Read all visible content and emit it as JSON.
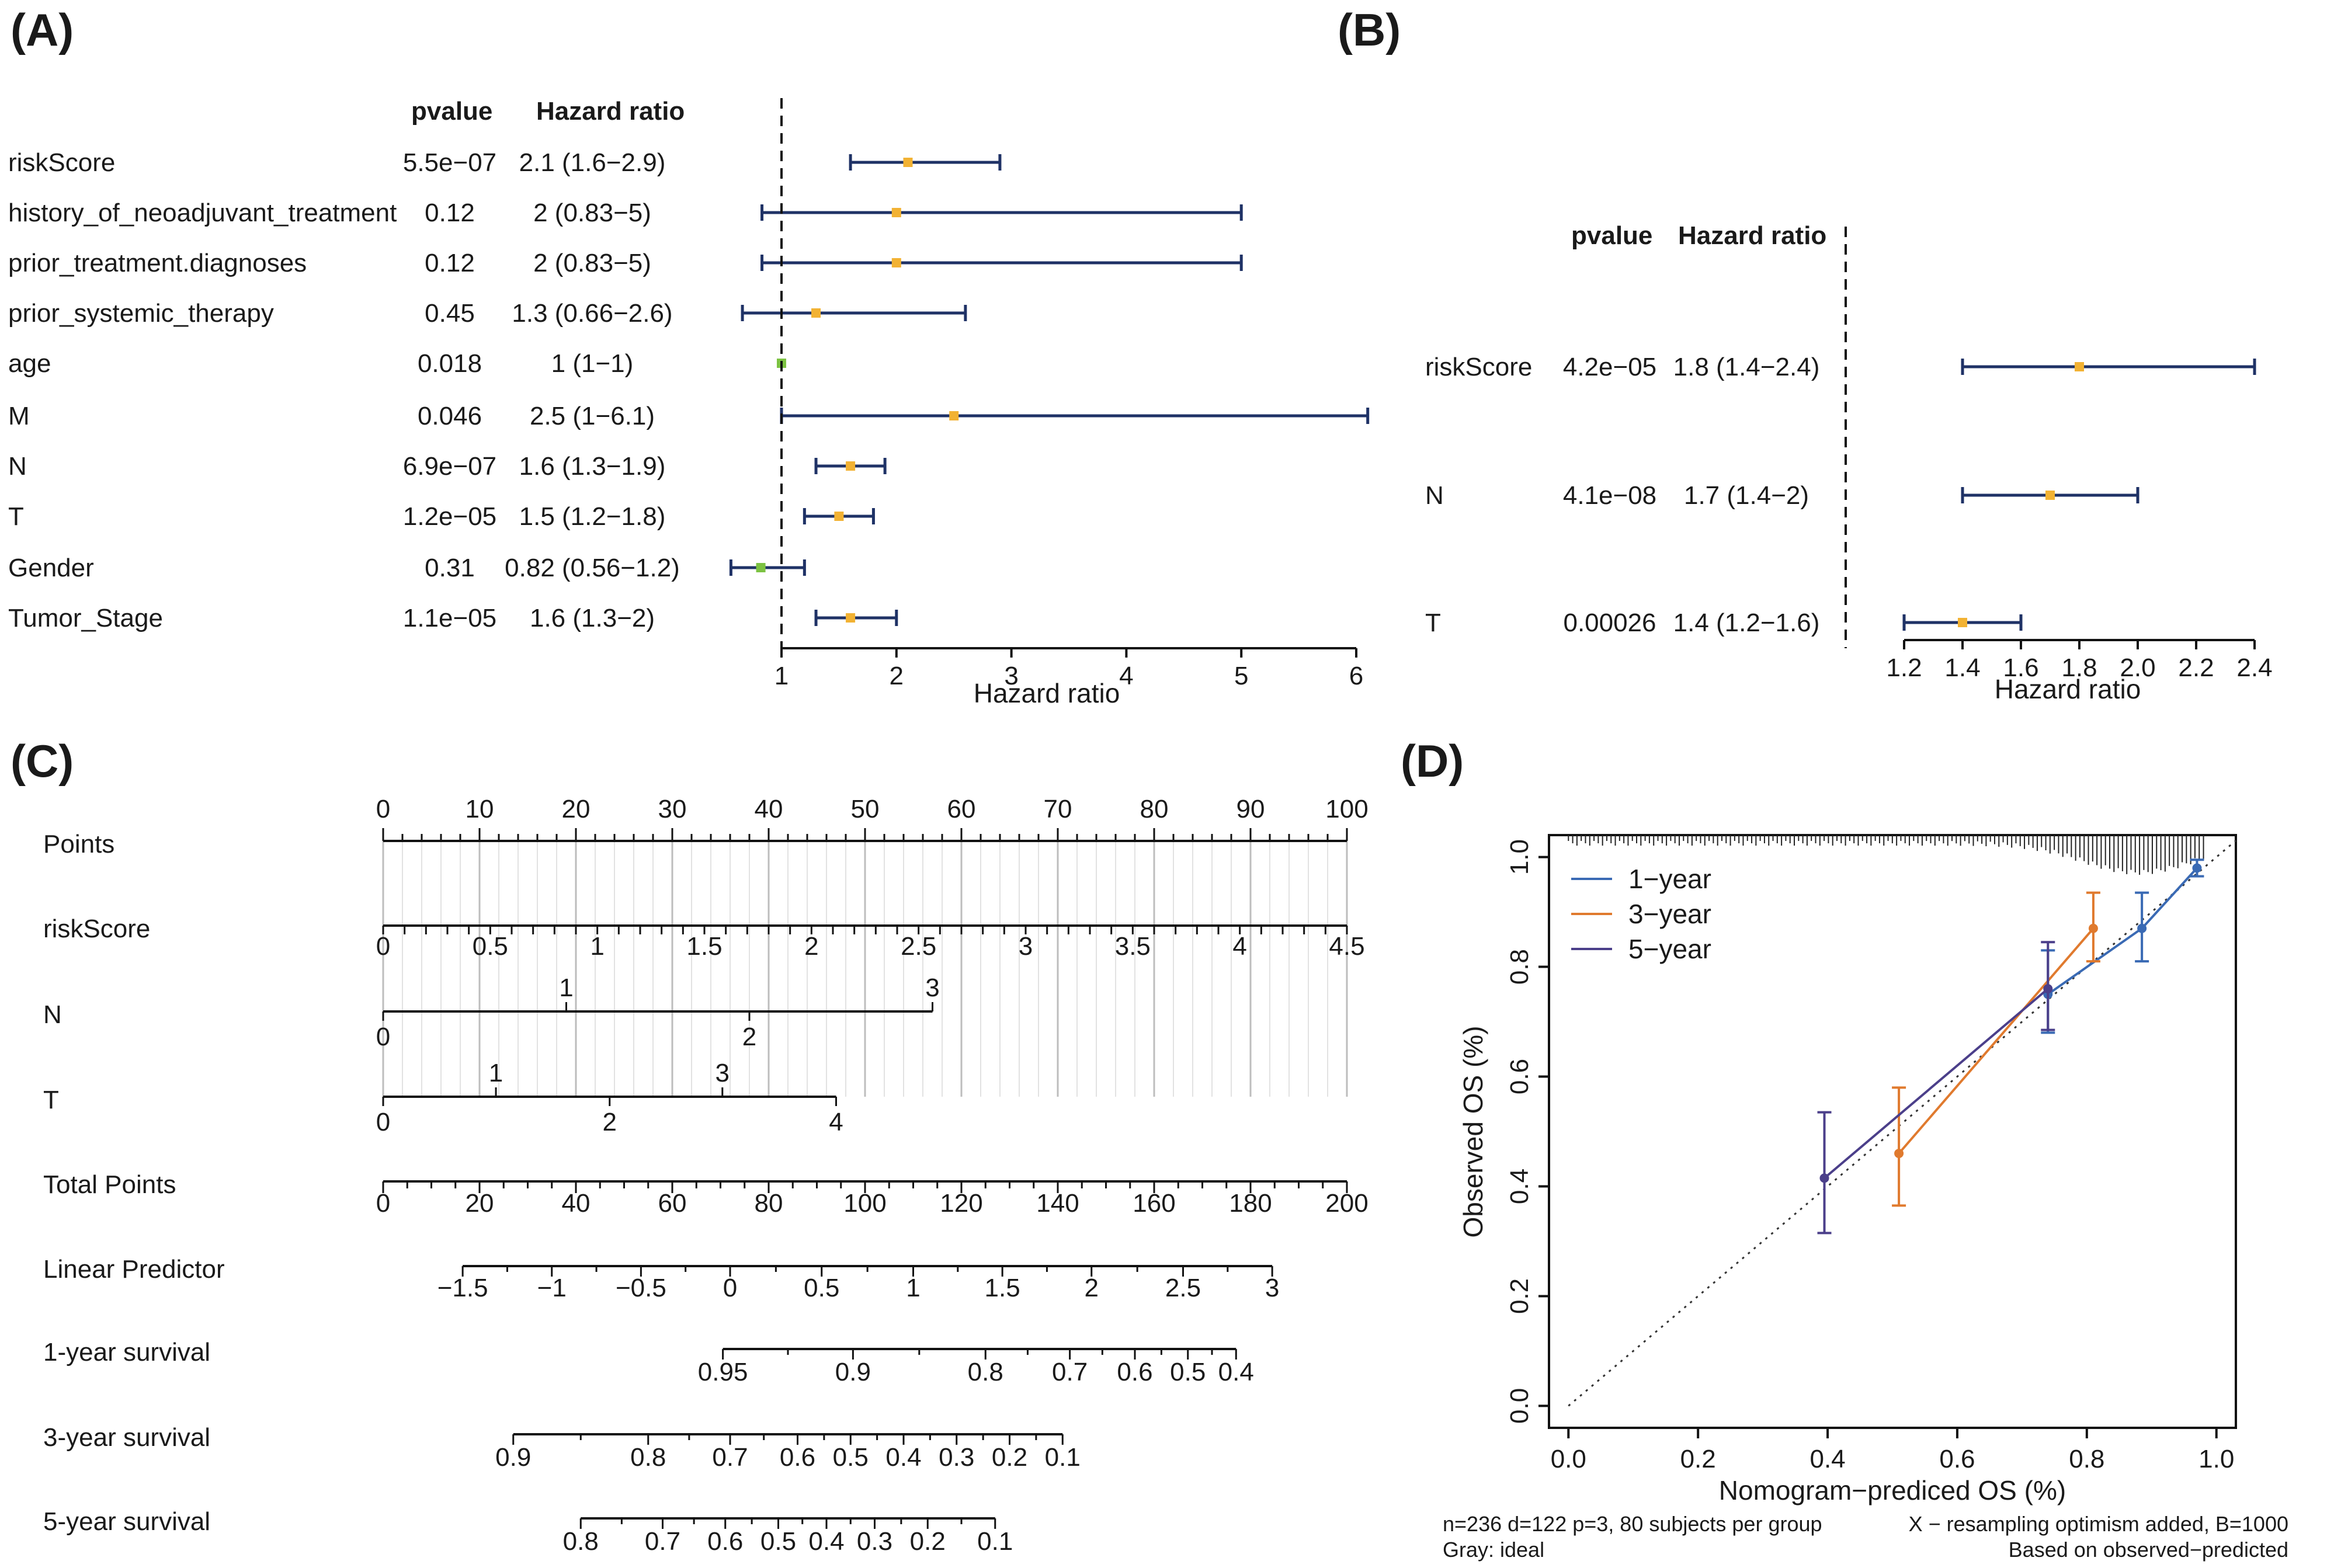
{
  "colors": {
    "ci": "#1f3266",
    "point": "#f2b233",
    "point_green": "#7cc242",
    "grid": "#c8c8c8",
    "y1": "#3a6ab4",
    "y3": "#e07a2e",
    "y5": "#4b3f8a",
    "ideal": "#333333"
  },
  "panels": {
    "A": "(A)",
    "B": "(B)",
    "C": "(C)",
    "D": "(D)"
  },
  "chart_data": [
    {
      "id": "A",
      "type": "forest",
      "col_headers": {
        "pvalue": "pvalue",
        "hr": "Hazard ratio"
      },
      "xlabel": "Hazard ratio",
      "xlim": [
        1,
        6
      ],
      "xticks": [
        1,
        2,
        3,
        4,
        5,
        6
      ],
      "ref_line": 1,
      "rows": [
        {
          "name": "riskScore",
          "pvalue": "5.5e−07",
          "hr_text": "2.1 (1.6−2.9)",
          "hr": 2.1,
          "lo": 1.6,
          "hi": 2.9,
          "color": "orange"
        },
        {
          "name": "history_of_neoadjuvant_treatment",
          "pvalue": "0.12",
          "hr_text": "2 (0.83−5)",
          "hr": 2.0,
          "lo": 0.83,
          "hi": 5.0,
          "color": "orange"
        },
        {
          "name": "prior_treatment.diagnoses",
          "pvalue": "0.12",
          "hr_text": "2 (0.83−5)",
          "hr": 2.0,
          "lo": 0.83,
          "hi": 5.0,
          "color": "orange"
        },
        {
          "name": "prior_systemic_therapy",
          "pvalue": "0.45",
          "hr_text": "1.3 (0.66−2.6)",
          "hr": 1.3,
          "lo": 0.66,
          "hi": 2.6,
          "color": "orange"
        },
        {
          "name": "age",
          "pvalue": "0.018",
          "hr_text": "1 (1−1)",
          "hr": 1.0,
          "lo": 1.0,
          "hi": 1.0,
          "color": "green"
        },
        {
          "name": "M",
          "pvalue": "0.046",
          "hr_text": "2.5 (1−6.1)",
          "hr": 2.5,
          "lo": 1.0,
          "hi": 6.1,
          "color": "orange"
        },
        {
          "name": "N",
          "pvalue": "6.9e−07",
          "hr_text": "1.6 (1.3−1.9)",
          "hr": 1.6,
          "lo": 1.3,
          "hi": 1.9,
          "color": "orange"
        },
        {
          "name": "T",
          "pvalue": "1.2e−05",
          "hr_text": "1.5 (1.2−1.8)",
          "hr": 1.5,
          "lo": 1.2,
          "hi": 1.8,
          "color": "orange"
        },
        {
          "name": "Gender",
          "pvalue": "0.31",
          "hr_text": "0.82 (0.56−1.2)",
          "hr": 0.82,
          "lo": 0.56,
          "hi": 1.2,
          "color": "green"
        },
        {
          "name": "Tumor_Stage",
          "pvalue": "1.1e−05",
          "hr_text": "1.6 (1.3−2)",
          "hr": 1.6,
          "lo": 1.3,
          "hi": 2.0,
          "color": "orange"
        }
      ]
    },
    {
      "id": "B",
      "type": "forest",
      "col_headers": {
        "pvalue": "pvalue",
        "hr": "Hazard ratio"
      },
      "xlabel": "Hazard ratio",
      "xlim": [
        1.2,
        2.4
      ],
      "xticks": [
        "1.2",
        "1.4",
        "1.6",
        "1.8",
        "2.0",
        "2.2",
        "2.4"
      ],
      "rows": [
        {
          "name": "riskScore",
          "pvalue": "4.2e−05",
          "hr_text": "1.8 (1.4−2.4)",
          "hr": 1.8,
          "lo": 1.4,
          "hi": 2.4
        },
        {
          "name": "N",
          "pvalue": "4.1e−08",
          "hr_text": "1.7 (1.4−2)",
          "hr": 1.7,
          "lo": 1.4,
          "hi": 2.0
        },
        {
          "name": "T",
          "pvalue": "0.00026",
          "hr_text": "1.4 (1.2−1.6)",
          "hr": 1.4,
          "lo": 1.2,
          "hi": 1.6
        }
      ]
    },
    {
      "id": "C",
      "type": "nomogram",
      "scales": [
        {
          "label": "Points",
          "ticks": [
            "0",
            "10",
            "20",
            "30",
            "40",
            "50",
            "60",
            "70",
            "80",
            "90",
            "100"
          ],
          "values": [
            0,
            10,
            20,
            30,
            40,
            50,
            60,
            70,
            80,
            90,
            100
          ],
          "kind": "points"
        },
        {
          "label": "riskScore",
          "ticks": [
            "0",
            "0.5",
            "1",
            "1.5",
            "2",
            "2.5",
            "3",
            "3.5",
            "4",
            "4.5"
          ],
          "values": [
            0,
            0.5,
            1,
            1.5,
            2,
            2.5,
            3,
            3.5,
            4,
            4.5
          ],
          "min": 0,
          "max": 4.5,
          "pts_min": 0,
          "pts_max": 100
        },
        {
          "label": "N",
          "up": [
            "1",
            "3"
          ],
          "up_pts": [
            19,
            57
          ],
          "down": [
            "0",
            "2"
          ],
          "down_pts": [
            0,
            38
          ],
          "line_pts": [
            0,
            57
          ]
        },
        {
          "label": "T",
          "up": [
            "1",
            "3"
          ],
          "up_pts": [
            11.7,
            35.2
          ],
          "down": [
            "0",
            "2",
            "4"
          ],
          "down_pts": [
            0,
            23.5,
            47
          ],
          "line_pts": [
            0,
            47
          ]
        },
        {
          "label": "Total Points",
          "ticks": [
            "0",
            "20",
            "40",
            "60",
            "80",
            "100",
            "120",
            "140",
            "160",
            "180",
            "200"
          ],
          "min": 0,
          "max": 200
        },
        {
          "label": "Linear Predictor",
          "ticks": [
            "−1.5",
            "−1",
            "−0.5",
            "0",
            "0.5",
            "1",
            "1.5",
            "2",
            "2.5",
            "3"
          ],
          "tot_pts": [
            16.5,
            35,
            53.5,
            72,
            91,
            110,
            128.5,
            147,
            166,
            184.5
          ]
        },
        {
          "label": "1-year survival",
          "ticks": [
            "0.95",
            "0.9",
            "0.8",
            "0.7",
            "0.6",
            "0.5",
            "0.4"
          ],
          "tot_pts": [
            70.5,
            97.5,
            125,
            142.5,
            156,
            167,
            177
          ]
        },
        {
          "label": "3-year survival",
          "ticks": [
            "0.9",
            "0.8",
            "0.7",
            "0.6",
            "0.5",
            "0.4",
            "0.3",
            "0.2",
            "0.1"
          ],
          "tot_pts": [
            27,
            55,
            72,
            86,
            97,
            108,
            119,
            130,
            141
          ]
        },
        {
          "label": "5-year survival",
          "ticks": [
            "0.8",
            "0.7",
            "0.6",
            "0.5",
            "0.4",
            "0.3",
            "0.2",
            "0.1"
          ],
          "tot_pts": [
            41,
            58,
            71,
            82,
            92,
            102,
            113,
            127
          ]
        }
      ]
    },
    {
      "id": "D",
      "type": "line",
      "xlabel": "Nomogram−prediced OS (%)",
      "ylabel": "Observed OS (%)",
      "xlim": [
        -0.03,
        1.03
      ],
      "ylim": [
        -0.04,
        1.04
      ],
      "xticks": [
        "0.0",
        "0.2",
        "0.4",
        "0.6",
        "0.8",
        "1.0"
      ],
      "yticks": [
        "0.0",
        "0.2",
        "0.4",
        "0.6",
        "0.8",
        "1.0"
      ],
      "legend": [
        "1−year",
        "3−year",
        "5−year"
      ],
      "series": [
        {
          "name": "1−year",
          "color": "y1",
          "x": [
            0.74,
            0.885,
            0.97
          ],
          "y": [
            0.75,
            0.87,
            0.98
          ],
          "lo": [
            0.68,
            0.81,
            0.965
          ],
          "hi": [
            0.83,
            0.935,
            0.995
          ]
        },
        {
          "name": "3−year",
          "color": "y3",
          "x": [
            0.51,
            0.81
          ],
          "y": [
            0.46,
            0.87
          ],
          "lo": [
            0.365,
            0.81
          ],
          "hi": [
            0.58,
            0.935
          ]
        },
        {
          "name": "5−year",
          "color": "y5",
          "x": [
            0.395,
            0.74
          ],
          "y": [
            0.415,
            0.76
          ],
          "lo": [
            0.315,
            0.685
          ],
          "hi": [
            0.535,
            0.845
          ]
        }
      ],
      "footnote_left_1": "n=236 d=122 p=3, 80 subjects per group",
      "footnote_left_2": "Gray: ideal",
      "footnote_right_1": "X − resampling optimism added, B=1000",
      "footnote_right_2": "Based on observed−predicted"
    }
  ]
}
